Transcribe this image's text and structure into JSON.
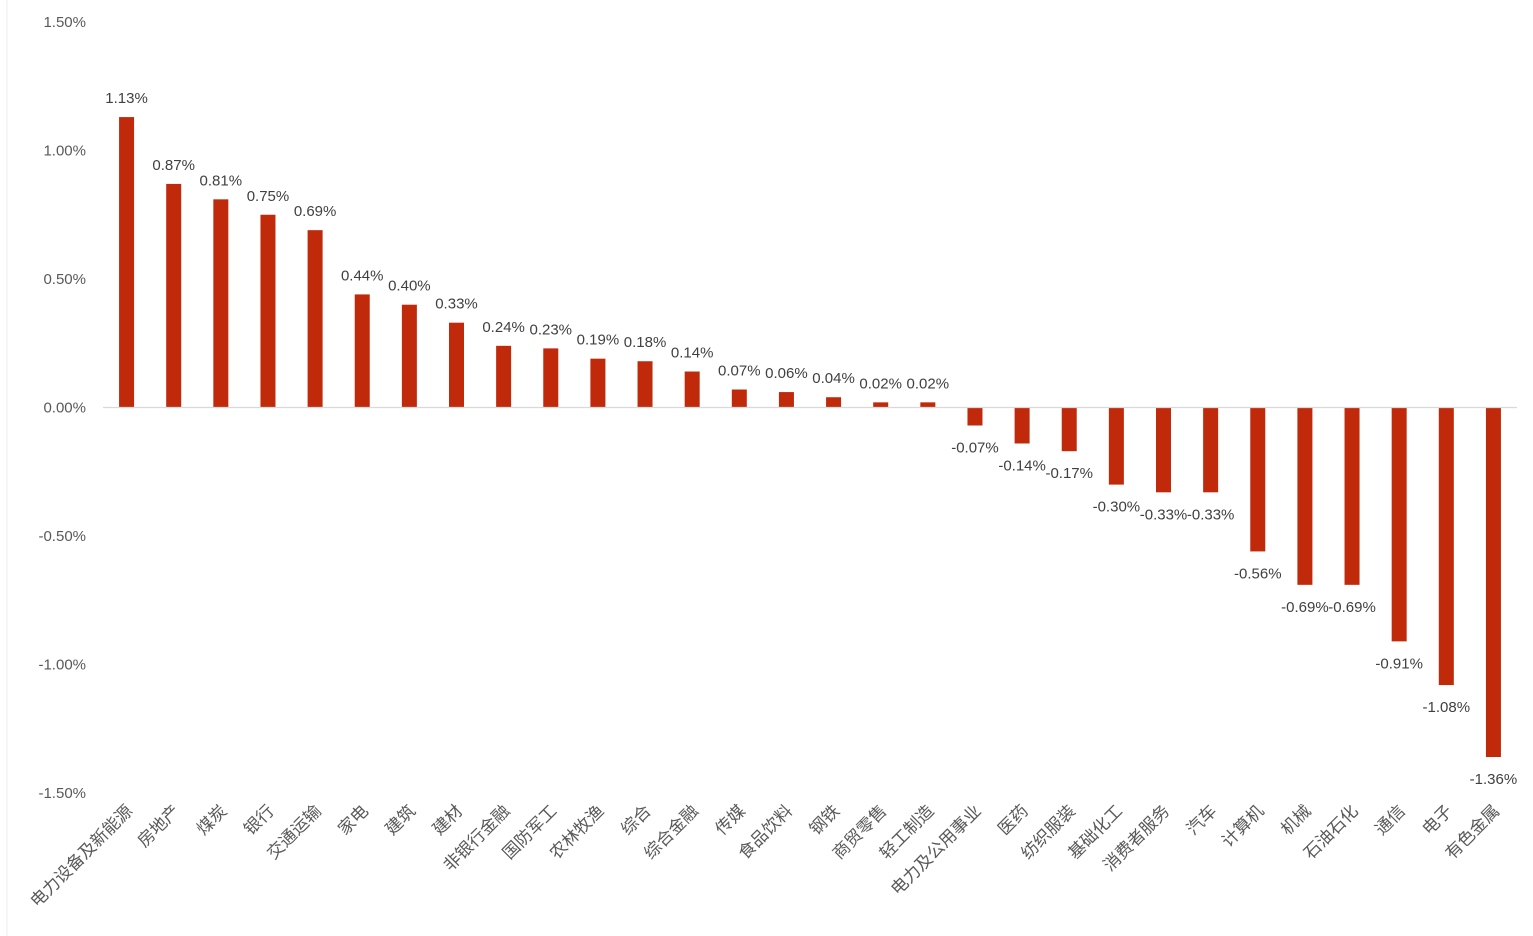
{
  "chart_data": {
    "type": "bar",
    "categories": [
      "电力设备及新能源",
      "房地产",
      "煤炭",
      "银行",
      "交通运输",
      "家电",
      "建筑",
      "建材",
      "非银行金融",
      "国防军工",
      "农林牧渔",
      "综合",
      "综合金融",
      "传媒",
      "食品饮料",
      "钢铁",
      "商贸零售",
      "轻工制造",
      "电力及公用事业",
      "医药",
      "纺织服装",
      "基础化工",
      "消费者服务",
      "汽车",
      "计算机",
      "机械",
      "石油石化",
      "通信",
      "电子",
      "有色金属"
    ],
    "values": [
      1.13,
      0.87,
      0.81,
      0.75,
      0.69,
      0.44,
      0.4,
      0.33,
      0.24,
      0.23,
      0.19,
      0.18,
      0.14,
      0.07,
      0.06,
      0.04,
      0.02,
      0.02,
      -0.07,
      -0.14,
      -0.17,
      -0.3,
      -0.33,
      -0.33,
      -0.56,
      -0.69,
      -0.69,
      -0.91,
      -1.08,
      -1.36
    ],
    "data_labels": [
      "1.13%",
      "0.87%",
      "0.81%",
      "0.75%",
      "0.69%",
      "0.44%",
      "0.40%",
      "0.33%",
      "0.24%",
      "0.23%",
      "0.19%",
      "0.18%",
      "0.14%",
      "0.07%",
      "0.06%",
      "0.04%",
      "0.02%",
      "0.02%",
      "-0.07%",
      "-0.14%",
      "-0.17%",
      "-0.30%",
      "-0.33%",
      "-0.33%",
      "-0.56%",
      "-0.69%",
      "-0.69%",
      "-0.91%",
      "-1.08%",
      "-1.36%"
    ],
    "yticks": [
      1.5,
      1.0,
      0.5,
      0.0,
      -0.5,
      -1.0,
      -1.5
    ],
    "ytick_labels": [
      "1.50%",
      "1.00%",
      "0.50%",
      "0.00%",
      "-0.50%",
      "-1.00%",
      "-1.50%"
    ],
    "ylim": [
      -1.5,
      1.5
    ],
    "xlabel": "",
    "ylabel": "",
    "title": "",
    "grid": false,
    "legend": "none",
    "bar_color": "#C0290A",
    "axis_color": "#D9D9D9"
  }
}
